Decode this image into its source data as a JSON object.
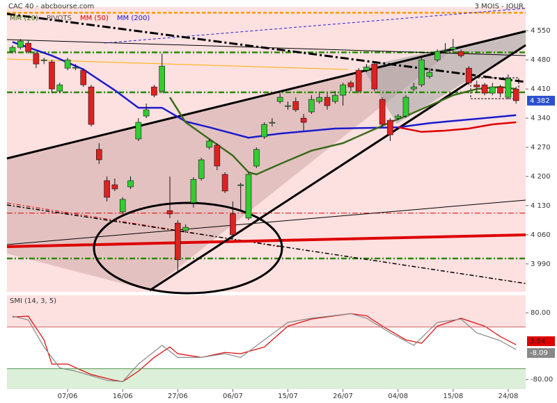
{
  "chart_data": {
    "type": "candlestick",
    "title": "CAC 40 - abcbourse.com",
    "period": "3 MOIS - JOUR",
    "legend": [
      {
        "name": "MM (20)",
        "color": "#3a6b1a"
      },
      {
        "name": "PIVOTS",
        "color": "#555555"
      },
      {
        "name": "MM (50)",
        "color": "#dd0000"
      },
      {
        "name": "MM (200)",
        "color": "#1a1acc"
      }
    ],
    "categories": [
      null,
      null,
      null,
      null,
      null,
      null,
      null,
      "07/06",
      null,
      null,
      null,
      null,
      null,
      null,
      "16/06",
      null,
      null,
      null,
      null,
      null,
      null,
      "27/06",
      null,
      null,
      null,
      null,
      null,
      null,
      "06/07",
      null,
      null,
      null,
      null,
      null,
      null,
      "15/07",
      null,
      null,
      null,
      null,
      null,
      null,
      "26/07",
      null,
      null,
      null,
      null,
      null,
      null,
      "04/08",
      null,
      null,
      null,
      null,
      null,
      null,
      "15/08",
      null,
      null,
      null,
      null,
      null,
      null,
      "24/08",
      null
    ],
    "open": [
      4500,
      4510,
      4520,
      4495,
      4478,
      4475,
      4405,
      4460,
      4460,
      4455,
      4415,
      4265,
      4190,
      4180,
      4115,
      4175,
      4290,
      4345,
      4415,
      4405,
      4118,
      4088,
      4070,
      4137,
      4195,
      4270,
      4275,
      4205,
      4110,
      4178,
      4100,
      4225,
      4295,
      4328,
      4380,
      4368,
      4380,
      4340,
      4355,
      4380,
      4390,
      4380,
      4395,
      4425,
      4455,
      4455,
      4470,
      4385,
      4335,
      4340,
      4345,
      4410,
      4420,
      4440,
      4480,
      4500,
      4505,
      4500,
      4460,
      4420,
      4420,
      4400,
      4415,
      4390,
      4410
    ],
    "high": [
      4515,
      4530,
      4528,
      4500,
      4485,
      4480,
      4425,
      4485,
      4470,
      4460,
      4420,
      4280,
      4200,
      4195,
      4150,
      4200,
      4340,
      4375,
      4420,
      4495,
      4200,
      4095,
      4085,
      4198,
      4245,
      4290,
      4280,
      4210,
      4140,
      4185,
      4210,
      4270,
      4330,
      4340,
      4400,
      4380,
      4390,
      4350,
      4395,
      4400,
      4400,
      4405,
      4425,
      4430,
      4460,
      4470,
      4475,
      4390,
      4340,
      4350,
      4395,
      4425,
      4485,
      4460,
      4505,
      4520,
      4530,
      4505,
      4465,
      4430,
      4425,
      4425,
      4420,
      4445,
      4415
    ],
    "low": [
      4495,
      4505,
      4495,
      4460,
      4470,
      4400,
      4400,
      4455,
      4455,
      4415,
      4320,
      4230,
      4140,
      4165,
      4110,
      4170,
      4285,
      4340,
      4390,
      4400,
      4100,
      3970,
      4065,
      4125,
      4190,
      4265,
      4215,
      4160,
      4050,
      4120,
      4095,
      4220,
      4290,
      4320,
      4375,
      4360,
      4355,
      4310,
      4350,
      4375,
      4360,
      4375,
      4370,
      4405,
      4400,
      4450,
      4405,
      4320,
      4285,
      4335,
      4340,
      4405,
      4415,
      4435,
      4475,
      4495,
      4500,
      4485,
      4420,
      4400,
      4395,
      4395,
      4390,
      4385,
      4375
    ],
    "close": [
      4510,
      4525,
      4500,
      4470,
      4480,
      4410,
      4420,
      4480,
      4462,
      4420,
      4325,
      4240,
      4150,
      4170,
      4145,
      4190,
      4330,
      4360,
      4395,
      4465,
      4110,
      4000,
      4078,
      4193,
      4240,
      4285,
      4225,
      4165,
      4060,
      4180,
      4205,
      4265,
      4325,
      4330,
      4390,
      4370,
      4360,
      4330,
      4385,
      4390,
      4370,
      4395,
      4420,
      4415,
      4405,
      4462,
      4410,
      4325,
      4300,
      4345,
      4390,
      4415,
      4480,
      4450,
      4500,
      4502,
      4510,
      4490,
      4425,
      4415,
      4400,
      4415,
      4400,
      4435,
      4382
    ],
    "up_color": "#33cc33",
    "down_color": "#dd2222",
    "price_tag": {
      "value": 4382,
      "label": "4 382"
    },
    "lines": [
      {
        "name": "MM (200)",
        "color": "#1a1acc",
        "x": [
          0,
          5,
          9,
          13,
          16,
          19,
          22,
          25,
          30,
          34,
          41,
          49,
          53,
          60,
          64
        ],
        "values": [
          4523,
          4490,
          4457,
          4407,
          4365,
          4365,
          4332,
          4318,
          4293,
          4303,
          4315,
          4318,
          4328,
          4340,
          4347
        ]
      },
      {
        "name": "MM (20)",
        "color": "#3a6b1a",
        "x": [
          20,
          22,
          25,
          28,
          30,
          31,
          34,
          38,
          42,
          45,
          48,
          50,
          53,
          56,
          59,
          62,
          64
        ],
        "values": [
          4390,
          4330,
          4290,
          4250,
          4210,
          4205,
          4230,
          4262,
          4280,
          4305,
          4330,
          4345,
          4370,
          4395,
          4410,
          4415,
          4410
        ]
      },
      {
        "name": "MM (50)",
        "color": "#dd0000",
        "x": [
          49,
          52,
          55,
          58,
          61,
          64
        ],
        "values": [
          4318,
          4307,
          4310,
          4315,
          4325,
          4330
        ]
      }
    ],
    "pivots": [
      {
        "value": 4593,
        "color": "#ff9900"
      },
      {
        "value": 4498,
        "color": "#2a8a00"
      },
      {
        "value": 4402,
        "color": "#2a8a00"
      },
      {
        "value": 4003,
        "color": "#2a8a00"
      },
      {
        "value": 4112,
        "color": "#dd0000"
      }
    ],
    "ylim": [
      3923,
      4607
    ],
    "yticks": [
      {
        "value": 4550,
        "label": "4 550"
      },
      {
        "value": 4480,
        "label": "4 480"
      },
      {
        "value": 4410,
        "label": "4 410"
      },
      {
        "value": 4340,
        "label": "4 340"
      },
      {
        "value": 4270,
        "label": "4 270"
      },
      {
        "value": 4200,
        "label": "4 200"
      },
      {
        "value": 4130,
        "label": "4 130"
      },
      {
        "value": 4060,
        "label": "4 060"
      },
      {
        "value": 3990,
        "label": "3 990"
      }
    ],
    "indicator": {
      "title": "SMI (14, 3, 5)",
      "ylim": [
        -103,
        122
      ],
      "yticks": [
        {
          "value": 80,
          "label": "80.00"
        },
        {
          "value": -80,
          "label": "-80.00"
        }
      ],
      "levels": [
        46,
        -54
      ],
      "series": [
        {
          "color": "#dd0000",
          "x": [
            0,
            2,
            4,
            5,
            7,
            10,
            13,
            14,
            16,
            18,
            20,
            21,
            24,
            27,
            29,
            32,
            35,
            38,
            43,
            45,
            47,
            50,
            52,
            54,
            57,
            60,
            62,
            64
          ],
          "values": [
            70,
            72,
            15,
            -43,
            -43,
            -68,
            -82,
            -85,
            -60,
            -27,
            -2,
            -18,
            -27,
            -15,
            -18,
            -2,
            48,
            65,
            78,
            73,
            48,
            15,
            7,
            48,
            67,
            48,
            23,
            3.54
          ]
        },
        {
          "color": "#888888",
          "x": [
            0,
            2,
            4,
            6,
            8,
            12,
            14,
            16,
            19,
            21,
            24,
            27,
            29,
            32,
            35,
            38,
            43,
            45,
            48,
            51,
            54,
            57,
            59,
            62,
            64
          ],
          "values": [
            72,
            63,
            -2,
            -52,
            -60,
            -82,
            -85,
            -43,
            2,
            -27,
            -27,
            -18,
            -27,
            15,
            57,
            67,
            78,
            67,
            32,
            2,
            57,
            65,
            32,
            13,
            -8.09
          ]
        }
      ]
    }
  }
}
